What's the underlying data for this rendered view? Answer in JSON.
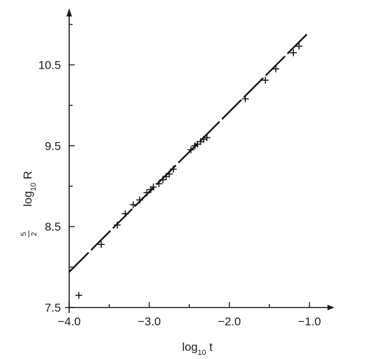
{
  "chart_data": {
    "type": "scatter",
    "title": "",
    "xlabel": {
      "main": "log",
      "sub": "10",
      "tail": " t"
    },
    "ylabel": {
      "frac_num": "5",
      "frac_den": "2",
      "main": "log",
      "sub": "10",
      "tail": " R"
    },
    "xlim": [
      -4.0,
      -0.8
    ],
    "ylim": [
      7.5,
      11.2
    ],
    "xticks": [
      -4.0,
      -3.0,
      -2.0,
      -1.0
    ],
    "xtick_labels": [
      "−4.0",
      "−3.0",
      "−2.0",
      "−1.0"
    ],
    "yticks": [
      7.5,
      8.5,
      9.5,
      10.5
    ],
    "ytick_labels": [
      "7.5",
      "8.5",
      "9.5",
      "10.5"
    ],
    "grid": false,
    "legend": "none",
    "marker": "plus",
    "series": [
      {
        "x": [
          -3.88,
          -3.6,
          -3.4,
          -3.3,
          -3.2,
          -3.12,
          -3.03,
          -2.98,
          -2.95,
          -2.88,
          -2.83,
          -2.79,
          -2.75,
          -2.7,
          -2.48,
          -2.43,
          -2.4,
          -2.36,
          -2.32,
          -2.28,
          -1.8,
          -1.55,
          -1.42,
          -1.2,
          -1.13
        ],
        "y": [
          7.65,
          8.28,
          8.52,
          8.66,
          8.77,
          8.83,
          8.92,
          8.96,
          8.99,
          9.03,
          9.08,
          9.12,
          9.15,
          9.21,
          9.45,
          9.5,
          9.52,
          9.55,
          9.58,
          9.6,
          10.08,
          10.31,
          10.45,
          10.65,
          10.73
        ]
      }
    ],
    "fit_line": {
      "x": [
        -4.0,
        -1.03
      ],
      "y": [
        7.94,
        10.88
      ]
    }
  }
}
